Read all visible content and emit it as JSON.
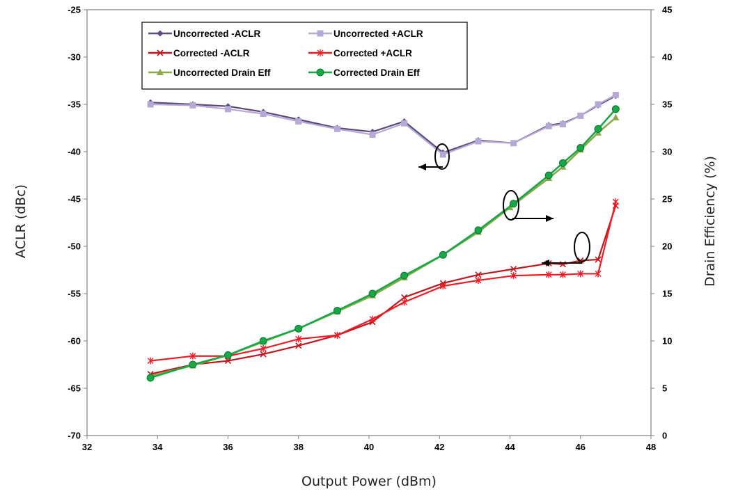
{
  "chart_data": {
    "type": "line",
    "title": "",
    "xlabel": "Output Power (dBm)",
    "ylabel": "ACLR (dBc)",
    "y2label": "Drain Efficiency (%)",
    "xlim": [
      32,
      48
    ],
    "ylim": [
      -70,
      -25
    ],
    "y2lim": [
      0,
      45
    ],
    "xticks": [
      "32",
      "34",
      "36",
      "38",
      "40",
      "42",
      "44",
      "46",
      "48"
    ],
    "yticks": [
      "-25",
      "-30",
      "-35",
      "-40",
      "-45",
      "-50",
      "-55",
      "-60",
      "-65",
      "-70"
    ],
    "y2ticks": [
      "45",
      "40",
      "35",
      "30",
      "25",
      "20",
      "15",
      "10",
      "5",
      "0"
    ],
    "grid": false,
    "legend_position": "top-left",
    "series": [
      {
        "name": "Uncorrected -ACLR",
        "axis": "left",
        "color": "#5B4A7F",
        "marker": "diamond",
        "x": [
          33.8,
          35.0,
          36.0,
          37.0,
          38.0,
          39.1,
          40.1,
          41.0,
          42.1,
          43.1,
          44.1,
          45.1,
          45.5,
          46.0,
          46.5,
          47.0
        ],
        "y": [
          -34.8,
          -35.0,
          -35.2,
          -35.8,
          -36.6,
          -37.5,
          -37.9,
          -36.8,
          -40.1,
          -38.8,
          -39.1,
          -37.2,
          -37.0,
          -36.2,
          -35.1,
          -34.1
        ]
      },
      {
        "name": "Uncorrected +ACLR",
        "axis": "left",
        "color": "#B7A9D6",
        "marker": "square",
        "x": [
          33.8,
          35.0,
          36.0,
          37.0,
          38.0,
          39.1,
          40.1,
          41.0,
          42.1,
          43.1,
          44.1,
          45.1,
          45.5,
          46.0,
          46.5,
          47.0
        ],
        "y": [
          -35.0,
          -35.1,
          -35.5,
          -36.0,
          -36.8,
          -37.6,
          -38.2,
          -37.0,
          -40.3,
          -38.9,
          -39.1,
          -37.3,
          -37.1,
          -36.2,
          -35.0,
          -34.0
        ]
      },
      {
        "name": "Corrected -ACLR",
        "axis": "left",
        "color": "#C0161C",
        "marker": "x",
        "x": [
          33.8,
          35.0,
          36.0,
          37.0,
          38.0,
          39.1,
          40.1,
          41.0,
          42.1,
          43.1,
          44.1,
          45.1,
          45.5,
          46.0,
          46.5,
          47.0
        ],
        "y": [
          -63.5,
          -62.5,
          -62.1,
          -61.4,
          -60.5,
          -59.4,
          -58.0,
          -55.4,
          -53.9,
          -53.0,
          -52.4,
          -51.8,
          -51.9,
          -51.5,
          -51.4,
          -45.7
        ]
      },
      {
        "name": "Corrected +ACLR",
        "axis": "left",
        "color": "#EE1C25",
        "marker": "star",
        "x": [
          33.8,
          35.0,
          36.0,
          37.0,
          38.0,
          39.1,
          40.1,
          41.0,
          42.1,
          43.1,
          44.1,
          45.1,
          45.5,
          46.0,
          46.5,
          47.0
        ],
        "y": [
          -62.1,
          -61.6,
          -61.6,
          -60.8,
          -59.8,
          -59.4,
          -57.7,
          -55.9,
          -54.2,
          -53.6,
          -53.1,
          -53.0,
          -53.0,
          -52.9,
          -52.9,
          -45.3
        ]
      },
      {
        "name": "Uncorrected Drain Eff",
        "axis": "right",
        "color": "#8CA84A",
        "marker": "triangle",
        "x": [
          33.8,
          35.0,
          36.0,
          37.0,
          38.0,
          39.1,
          40.1,
          41.0,
          42.1,
          43.1,
          44.0,
          45.1,
          45.5,
          46.0,
          46.5,
          47.0
        ],
        "y": [
          6.3,
          7.4,
          8.5,
          9.9,
          11.3,
          13.1,
          14.8,
          16.7,
          19.1,
          21.5,
          24.1,
          27.2,
          28.4,
          30.2,
          32.0,
          33.6
        ]
      },
      {
        "name": "Corrected Drain Eff",
        "axis": "right",
        "color": "#18A847",
        "marker": "circle",
        "x": [
          33.8,
          35.0,
          36.0,
          37.0,
          38.0,
          39.1,
          40.1,
          41.0,
          42.1,
          43.1,
          44.1,
          45.1,
          45.5,
          46.0,
          46.5,
          47.0
        ],
        "y": [
          6.1,
          7.5,
          8.5,
          10.0,
          11.3,
          13.2,
          15.0,
          16.9,
          19.1,
          21.7,
          24.5,
          27.5,
          28.8,
          30.4,
          32.4,
          34.5
        ]
      }
    ]
  }
}
